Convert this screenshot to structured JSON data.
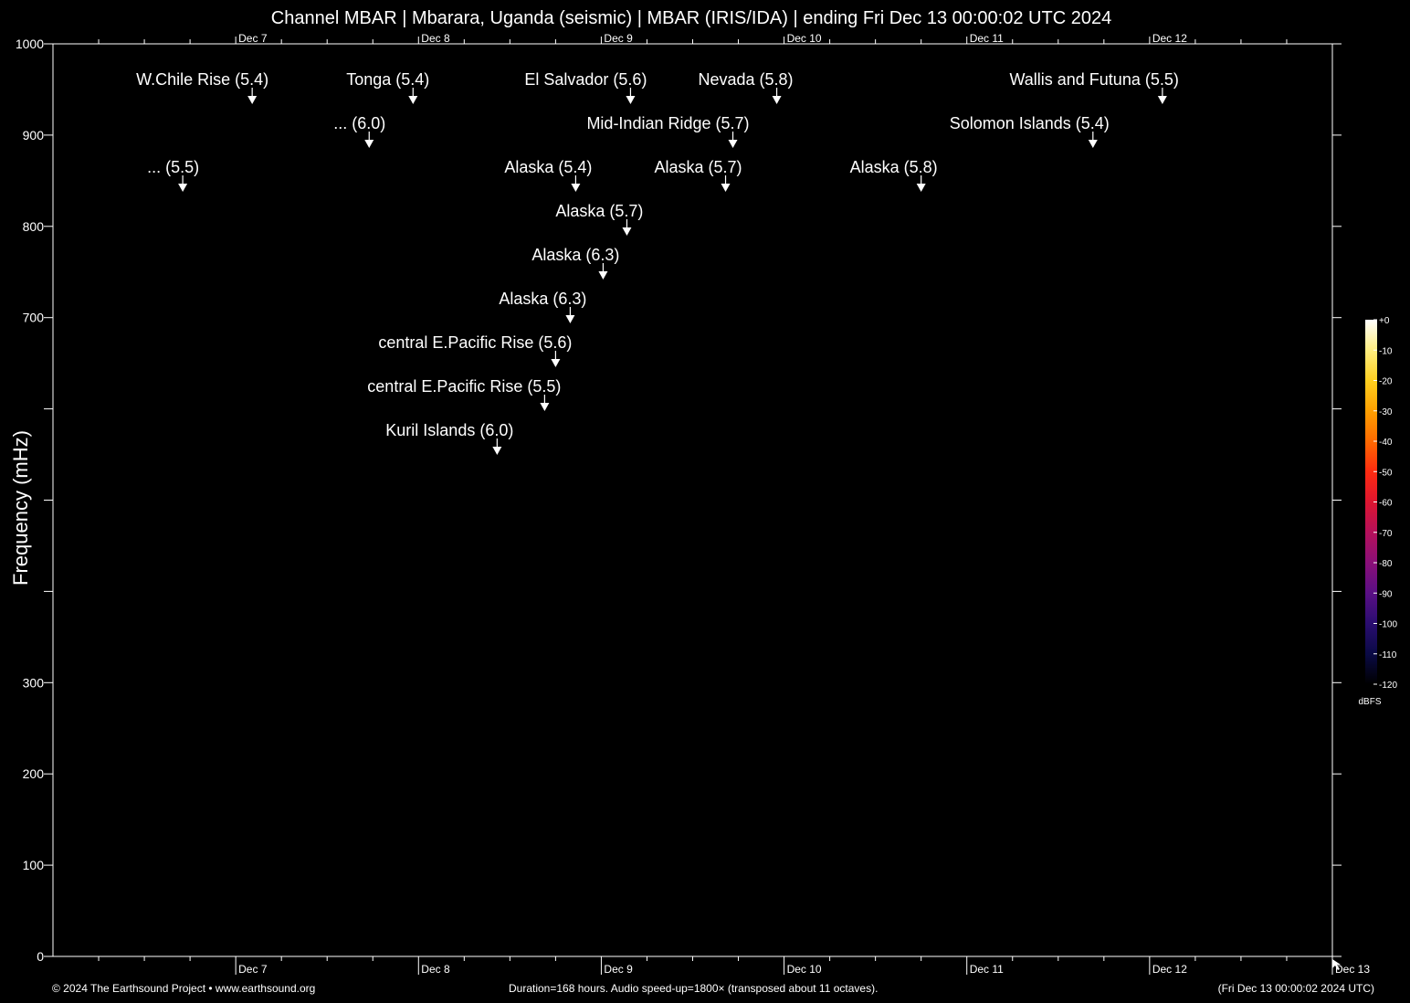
{
  "header": {
    "title": "Channel MBAR | Mbarara, Uganda (seismic) | MBAR (IRIS/IDA) | ending Fri Dec 13 00:00:02 UTC 2024"
  },
  "footer": {
    "copyright": "© 2024 The Earthsound Project • www.earthsound.org",
    "duration": "Duration=168 hours. Audio speed-up=1800× (transposed about 11 octaves).",
    "end_time": "(Fri Dec 13 00:00:02 2024 UTC)"
  },
  "chart_data": {
    "type": "heatmap",
    "title": "Channel MBAR | Mbarara, Uganda (seismic) | MBAR (IRIS/IDA) | ending Fri Dec 13 00:00:02 UTC 2024",
    "xlabel": "",
    "ylabel": "Frequency (mHz)",
    "xlim_days": [
      0,
      7
    ],
    "ylim": [
      0,
      1000
    ],
    "x_ticks": [
      {
        "day": 1,
        "label": "Dec  7"
      },
      {
        "day": 2,
        "label": "Dec  8"
      },
      {
        "day": 3,
        "label": "Dec  9"
      },
      {
        "day": 4,
        "label": "Dec 10"
      },
      {
        "day": 5,
        "label": "Dec 11"
      },
      {
        "day": 6,
        "label": "Dec 12"
      },
      {
        "day": 7,
        "label": "Dec 13"
      }
    ],
    "y_ticks": [
      {
        "value": 0,
        "label": "0"
      },
      {
        "value": 100,
        "label": "100"
      },
      {
        "value": 200,
        "label": "200"
      },
      {
        "value": 300,
        "label": "300"
      },
      {
        "value": 400,
        "label": ""
      },
      {
        "value": 500,
        "label": ""
      },
      {
        "value": 600,
        "label": ""
      },
      {
        "value": 700,
        "label": "700"
      },
      {
        "value": 800,
        "label": "800"
      },
      {
        "value": 900,
        "label": "900"
      },
      {
        "value": 1000,
        "label": "1000"
      }
    ],
    "events": [
      {
        "label": "W.Chile Rise (5.4)",
        "day": 1.09,
        "level": 0
      },
      {
        "label": "Tonga (5.4)",
        "day": 1.97,
        "level": 0
      },
      {
        "label": "El Salvador (5.6)",
        "day": 3.16,
        "level": 0
      },
      {
        "label": "Nevada (5.8)",
        "day": 3.96,
        "level": 0
      },
      {
        "label": "Wallis and Futuna (5.5)",
        "day": 6.07,
        "level": 0
      },
      {
        "label": "... (6.0)",
        "day": 1.73,
        "level": 1
      },
      {
        "label": "Mid-Indian Ridge (5.7)",
        "day": 3.72,
        "level": 1
      },
      {
        "label": "Solomon Islands (5.4)",
        "day": 5.69,
        "level": 1
      },
      {
        "label": "... (5.5)",
        "day": 0.71,
        "level": 2
      },
      {
        "label": "Alaska (5.4)",
        "day": 2.86,
        "level": 2
      },
      {
        "label": "Alaska (5.7)",
        "day": 3.68,
        "level": 2
      },
      {
        "label": "Alaska (5.8)",
        "day": 4.75,
        "level": 2
      },
      {
        "label": "Alaska (5.7)",
        "day": 3.14,
        "level": 3
      },
      {
        "label": "Alaska (6.3)",
        "day": 3.01,
        "level": 4
      },
      {
        "label": "Alaska (6.3)",
        "day": 2.83,
        "level": 5
      },
      {
        "label": "central E.Pacific Rise (5.6)",
        "day": 2.75,
        "level": 6
      },
      {
        "label": "central E.Pacific Rise (5.5)",
        "day": 2.69,
        "level": 7
      },
      {
        "label": "Kuril Islands (6.0)",
        "day": 2.43,
        "level": 8
      }
    ],
    "colorbar": {
      "unit": "dBFS",
      "min": -120,
      "max": 0,
      "tick_labels": [
        "+0",
        "-10",
        "-20",
        "-30",
        "-40",
        "-50",
        "-60",
        "-70",
        "-80",
        "-90",
        "-100",
        "-110",
        "-120"
      ],
      "colors": [
        "#000000",
        "#0a0a45",
        "#2a0d70",
        "#5a0f85",
        "#8a0f78",
        "#b5105a",
        "#dd1530",
        "#ff2b10",
        "#ff6a00",
        "#ffa000",
        "#ffd020",
        "#ffee80",
        "#ffffff"
      ]
    }
  }
}
